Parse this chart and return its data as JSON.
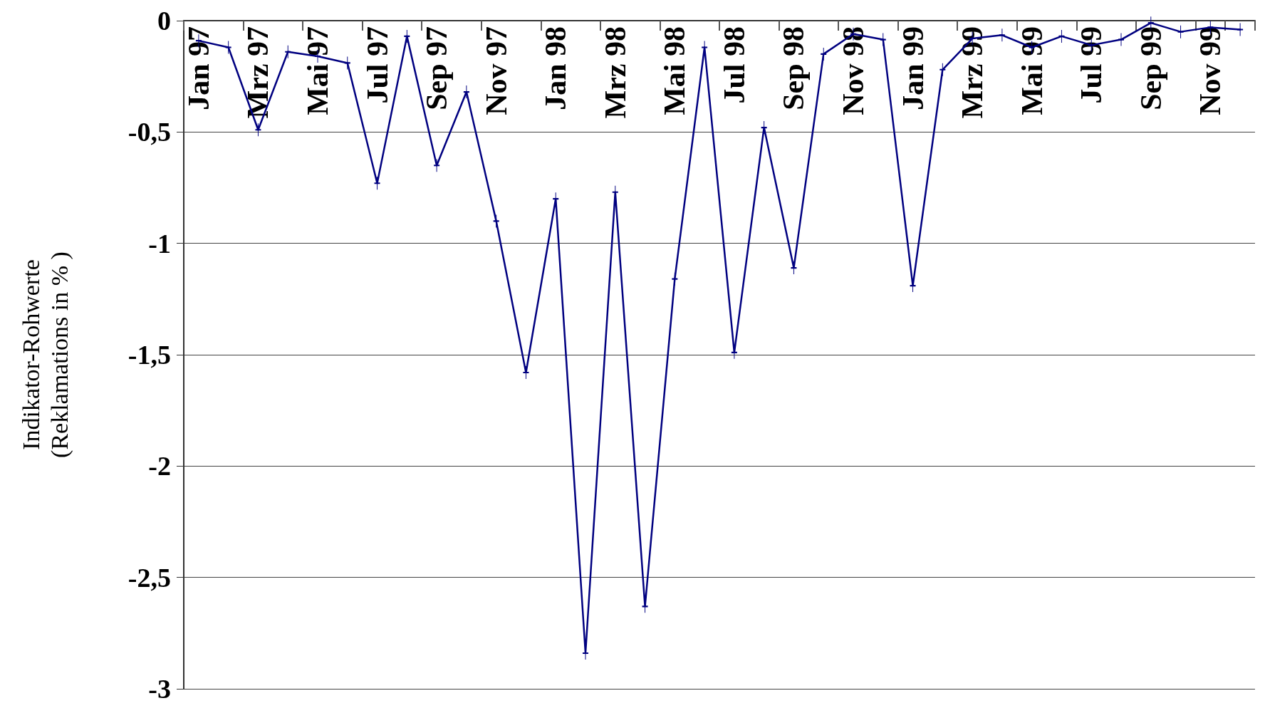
{
  "chart_data": {
    "type": "line",
    "ylabel": "Indikator-Rohwerte\n(Reklamations in % )",
    "categories": [
      "Jan 97",
      null,
      "Mrz 97",
      null,
      "Mai 97",
      null,
      "Jul 97",
      null,
      "Sep 97",
      null,
      "Nov 97",
      null,
      "Jan 98",
      null,
      "Mrz 98",
      null,
      "Mai 98",
      null,
      "Jul 98",
      null,
      "Sep 98",
      null,
      "Nov 98",
      null,
      "Jan 99",
      null,
      "Mrz 99",
      null,
      "Mai 99",
      null,
      "Jul 99",
      null,
      "Sep 99",
      null,
      "Nov 99",
      null
    ],
    "series": [
      {
        "color": "#000080",
        "values": [
          -0.09,
          -0.12,
          -0.49,
          -0.14,
          -0.16,
          -0.19,
          -0.73,
          -0.07,
          -0.65,
          -0.32,
          -0.9,
          -1.58,
          -0.8,
          -2.84,
          -0.77,
          -2.63,
          -1.16,
          -0.12,
          -1.49,
          -0.48,
          -1.11,
          -0.15,
          -0.06,
          -0.085,
          -1.19,
          -0.22,
          -0.08,
          -0.065,
          -0.12,
          -0.07,
          -0.11,
          -0.085,
          -0.01,
          -0.05,
          -0.03,
          -0.04
        ]
      }
    ],
    "ylim": [
      -3,
      0
    ],
    "yticks": [
      {
        "value": 0,
        "label": "0"
      },
      {
        "value": -0.5,
        "label": "-0,5"
      },
      {
        "value": -1,
        "label": "-1"
      },
      {
        "value": -1.5,
        "label": "-1,5"
      },
      {
        "value": -2,
        "label": "-2"
      },
      {
        "value": -2.5,
        "label": "-2,5"
      },
      {
        "value": -3,
        "label": "-3"
      }
    ],
    "grid": "y",
    "marker": "cross",
    "line_style": "solid"
  }
}
